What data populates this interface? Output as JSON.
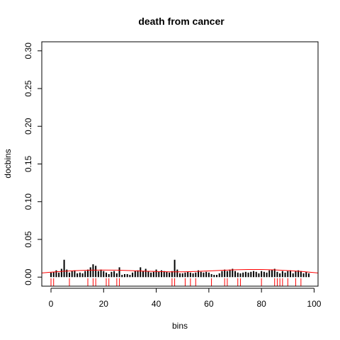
{
  "chart_data": {
    "type": "bar",
    "title": "death from cancer",
    "xlabel": "bins",
    "ylabel": "docbins",
    "xlim": [
      -3.5,
      101.5
    ],
    "ylim": [
      -0.012,
      0.312
    ],
    "xticks": [
      0,
      20,
      40,
      60,
      80,
      100
    ],
    "xtick_labels": [
      "0",
      "20",
      "40",
      "60",
      "80",
      "100"
    ],
    "yticks": [
      0.0,
      0.05,
      0.1,
      0.15,
      0.2,
      0.25,
      0.3
    ],
    "ytick_labels": [
      "0.00",
      "0.05",
      "0.10",
      "0.15",
      "0.20",
      "0.25",
      "0.30"
    ],
    "grid": false,
    "bar_color": "#000000",
    "curve_color": "#ff0000",
    "rug_color": "#ff0000",
    "x": [
      0,
      1,
      2,
      3,
      4,
      5,
      6,
      7,
      8,
      9,
      10,
      11,
      12,
      13,
      14,
      15,
      16,
      17,
      18,
      19,
      20,
      21,
      22,
      23,
      24,
      25,
      26,
      27,
      28,
      29,
      30,
      31,
      32,
      33,
      34,
      35,
      36,
      37,
      38,
      39,
      40,
      41,
      42,
      43,
      44,
      45,
      46,
      47,
      48,
      49,
      50,
      51,
      52,
      53,
      54,
      55,
      56,
      57,
      58,
      59,
      60,
      61,
      62,
      63,
      64,
      65,
      66,
      67,
      68,
      69,
      70,
      71,
      72,
      73,
      74,
      75,
      76,
      77,
      78,
      79,
      80,
      81,
      82,
      83,
      84,
      85,
      86,
      87,
      88,
      89,
      90,
      91,
      92,
      93,
      94,
      95,
      96,
      97,
      98
    ],
    "values": [
      0.006,
      0.007,
      0.009,
      0.006,
      0.011,
      0.023,
      0.01,
      0.006,
      0.008,
      0.009,
      0.005,
      0.006,
      0.005,
      0.008,
      0.01,
      0.013,
      0.017,
      0.015,
      0.008,
      0.01,
      0.008,
      0.006,
      0.004,
      0.007,
      0.008,
      0.005,
      0.013,
      0.003,
      0.004,
      0.004,
      0.003,
      0.006,
      0.008,
      0.009,
      0.013,
      0.008,
      0.011,
      0.008,
      0.006,
      0.007,
      0.01,
      0.007,
      0.009,
      0.008,
      0.007,
      0.006,
      0.008,
      0.023,
      0.01,
      0.005,
      0.005,
      0.006,
      0.007,
      0.006,
      0.005,
      0.006,
      0.009,
      0.007,
      0.006,
      0.007,
      0.006,
      0.004,
      0.003,
      0.003,
      0.005,
      0.008,
      0.01,
      0.008,
      0.01,
      0.011,
      0.008,
      0.006,
      0.005,
      0.006,
      0.007,
      0.006,
      0.007,
      0.008,
      0.007,
      0.005,
      0.008,
      0.007,
      0.006,
      0.009,
      0.01,
      0.011,
      0.007,
      0.005,
      0.008,
      0.006,
      0.008,
      0.009,
      0.005,
      0.008,
      0.009,
      0.008,
      0.005,
      0.007,
      0.005
    ],
    "curve": {
      "x": [
        -3.5,
        0,
        5,
        10,
        15,
        20,
        25,
        30,
        35,
        40,
        45,
        50,
        55,
        60,
        65,
        70,
        75,
        80,
        85,
        90,
        95,
        101.5
      ],
      "y": [
        0.0055,
        0.0065,
        0.0078,
        0.0087,
        0.0092,
        0.0094,
        0.0092,
        0.0087,
        0.008,
        0.0074,
        0.0071,
        0.0071,
        0.0075,
        0.0082,
        0.009,
        0.0097,
        0.0101,
        0.0101,
        0.0096,
        0.0087,
        0.0076,
        0.0055
      ]
    },
    "rug": [
      0,
      1,
      7,
      14,
      16,
      17,
      21,
      22,
      25,
      26,
      46,
      47,
      51,
      53,
      55,
      61,
      66,
      67,
      71,
      72,
      80,
      85,
      86,
      87,
      88,
      90,
      93,
      95
    ]
  }
}
